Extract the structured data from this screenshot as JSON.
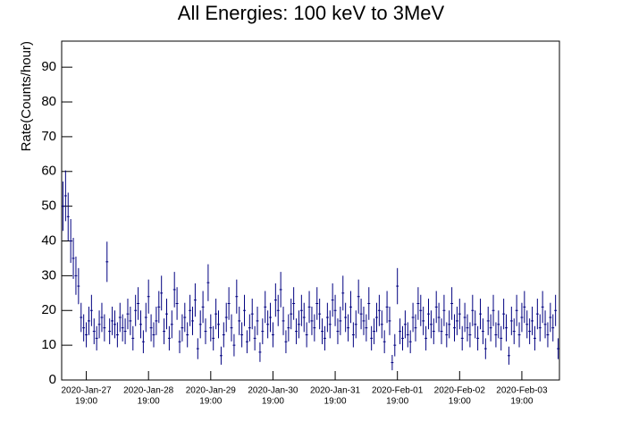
{
  "chart_data": {
    "type": "errorbar",
    "title": "All Energies:  100 keV to 3MeV",
    "y_label": "Rate(Counts/hour)",
    "color": "#000080",
    "ylim": [
      0,
      97.5
    ],
    "yticks": [
      0,
      10,
      20,
      30,
      40,
      50,
      60,
      70,
      80,
      90
    ],
    "xlim": [
      "2020-Jan-27 09:30",
      "2020-Feb-04 09:30"
    ],
    "xticks": [
      {
        "value": "2020-Jan-27 19:00",
        "label": [
          "2020-Jan-27",
          "19:00"
        ]
      },
      {
        "value": "2020-Jan-28 19:00",
        "label": [
          "2020-Jan-28",
          "19:00"
        ]
      },
      {
        "value": "2020-Jan-29 19:00",
        "label": [
          "2020-Jan-29",
          "19:00"
        ]
      },
      {
        "value": "2020-Jan-30 19:00",
        "label": [
          "2020-Jan-30",
          "19:00"
        ]
      },
      {
        "value": "2020-Jan-31 19:00",
        "label": [
          "2020-Jan-31",
          "19:00"
        ]
      },
      {
        "value": "2020-Feb-01 19:00",
        "label": [
          "2020-Feb-01",
          "19:00"
        ]
      },
      {
        "value": "2020-Feb-02 19:00",
        "label": [
          "2020-Feb-02",
          "19:00"
        ]
      },
      {
        "value": "2020-Feb-03 19:00",
        "label": [
          "2020-Feb-03",
          "19:00"
        ]
      }
    ],
    "x": [
      "2020-Jan-27 10:00",
      "2020-Jan-27 11:00",
      "2020-Jan-27 12:00",
      "2020-Jan-27 13:00",
      "2020-Jan-27 14:00",
      "2020-Jan-27 15:00",
      "2020-Jan-27 16:00",
      "2020-Jan-27 17:00",
      "2020-Jan-27 18:00",
      "2020-Jan-27 19:00",
      "2020-Jan-27 20:00",
      "2020-Jan-27 21:00",
      "2020-Jan-27 22:00",
      "2020-Jan-27 23:00",
      "2020-Jan-28 00:00",
      "2020-Jan-28 01:00",
      "2020-Jan-28 02:00",
      "2020-Jan-28 03:00",
      "2020-Jan-28 04:00",
      "2020-Jan-28 05:00",
      "2020-Jan-28 06:00",
      "2020-Jan-28 07:00",
      "2020-Jan-28 08:00",
      "2020-Jan-28 09:00",
      "2020-Jan-28 10:00",
      "2020-Jan-28 11:00",
      "2020-Jan-28 12:00",
      "2020-Jan-28 13:00",
      "2020-Jan-28 14:00",
      "2020-Jan-28 15:00",
      "2020-Jan-28 16:00",
      "2020-Jan-28 17:00",
      "2020-Jan-28 18:00",
      "2020-Jan-28 19:00",
      "2020-Jan-28 20:00",
      "2020-Jan-28 21:00",
      "2020-Jan-28 22:00",
      "2020-Jan-28 23:00",
      "2020-Jan-29 00:00",
      "2020-Jan-29 01:00",
      "2020-Jan-29 02:00",
      "2020-Jan-29 03:00",
      "2020-Jan-29 04:00",
      "2020-Jan-29 05:00",
      "2020-Jan-29 06:00",
      "2020-Jan-29 07:00",
      "2020-Jan-29 08:00",
      "2020-Jan-29 09:00",
      "2020-Jan-29 10:00",
      "2020-Jan-29 11:00",
      "2020-Jan-29 12:00",
      "2020-Jan-29 13:00",
      "2020-Jan-29 14:00",
      "2020-Jan-29 15:00",
      "2020-Jan-29 16:00",
      "2020-Jan-29 17:00",
      "2020-Jan-29 18:00",
      "2020-Jan-29 19:00",
      "2020-Jan-29 20:00",
      "2020-Jan-29 21:00",
      "2020-Jan-29 22:00",
      "2020-Jan-29 23:00",
      "2020-Jan-30 00:00",
      "2020-Jan-30 01:00",
      "2020-Jan-30 02:00",
      "2020-Jan-30 03:00",
      "2020-Jan-30 04:00",
      "2020-Jan-30 05:00",
      "2020-Jan-30 06:00",
      "2020-Jan-30 07:00",
      "2020-Jan-30 08:00",
      "2020-Jan-30 09:00",
      "2020-Jan-30 10:00",
      "2020-Jan-30 11:00",
      "2020-Jan-30 12:00",
      "2020-Jan-30 13:00",
      "2020-Jan-30 14:00",
      "2020-Jan-30 15:00",
      "2020-Jan-30 16:00",
      "2020-Jan-30 17:00",
      "2020-Jan-30 18:00",
      "2020-Jan-30 19:00",
      "2020-Jan-30 20:00",
      "2020-Jan-30 21:00",
      "2020-Jan-30 22:00",
      "2020-Jan-30 23:00",
      "2020-Jan-31 00:00",
      "2020-Jan-31 01:00",
      "2020-Jan-31 02:00",
      "2020-Jan-31 03:00",
      "2020-Jan-31 04:00",
      "2020-Jan-31 05:00",
      "2020-Jan-31 06:00",
      "2020-Jan-31 07:00",
      "2020-Jan-31 08:00",
      "2020-Jan-31 09:00",
      "2020-Jan-31 10:00",
      "2020-Jan-31 11:00",
      "2020-Jan-31 12:00",
      "2020-Jan-31 13:00",
      "2020-Jan-31 14:00",
      "2020-Jan-31 15:00",
      "2020-Jan-31 16:00",
      "2020-Jan-31 17:00",
      "2020-Jan-31 18:00",
      "2020-Jan-31 19:00",
      "2020-Jan-31 20:00",
      "2020-Jan-31 21:00",
      "2020-Jan-31 22:00",
      "2020-Jan-31 23:00",
      "2020-Feb-01 00:00",
      "2020-Feb-01 01:00",
      "2020-Feb-01 02:00",
      "2020-Feb-01 03:00",
      "2020-Feb-01 04:00",
      "2020-Feb-01 05:00",
      "2020-Feb-01 06:00",
      "2020-Feb-01 07:00",
      "2020-Feb-01 08:00",
      "2020-Feb-01 09:00",
      "2020-Feb-01 10:00",
      "2020-Feb-01 11:00",
      "2020-Feb-01 12:00",
      "2020-Feb-01 13:00",
      "2020-Feb-01 14:00",
      "2020-Feb-01 15:00",
      "2020-Feb-01 16:00",
      "2020-Feb-01 17:00",
      "2020-Feb-01 18:00",
      "2020-Feb-01 19:00",
      "2020-Feb-01 20:00",
      "2020-Feb-01 21:00",
      "2020-Feb-01 22:00",
      "2020-Feb-01 23:00",
      "2020-Feb-02 00:00",
      "2020-Feb-02 01:00",
      "2020-Feb-02 02:00",
      "2020-Feb-02 03:00",
      "2020-Feb-02 04:00",
      "2020-Feb-02 05:00",
      "2020-Feb-02 06:00",
      "2020-Feb-02 07:00",
      "2020-Feb-02 08:00",
      "2020-Feb-02 09:00",
      "2020-Feb-02 10:00",
      "2020-Feb-02 11:00",
      "2020-Feb-02 12:00",
      "2020-Feb-02 13:00",
      "2020-Feb-02 14:00",
      "2020-Feb-02 15:00",
      "2020-Feb-02 16:00",
      "2020-Feb-02 17:00",
      "2020-Feb-02 18:00",
      "2020-Feb-02 19:00",
      "2020-Feb-02 20:00",
      "2020-Feb-02 21:00",
      "2020-Feb-02 22:00",
      "2020-Feb-02 23:00",
      "2020-Feb-03 00:00",
      "2020-Feb-03 01:00",
      "2020-Feb-03 02:00",
      "2020-Feb-03 03:00",
      "2020-Feb-03 04:00",
      "2020-Feb-03 05:00",
      "2020-Feb-03 06:00",
      "2020-Feb-03 07:00",
      "2020-Feb-03 08:00",
      "2020-Feb-03 09:00",
      "2020-Feb-03 10:00",
      "2020-Feb-03 11:00",
      "2020-Feb-03 12:00",
      "2020-Feb-03 13:00",
      "2020-Feb-03 14:00",
      "2020-Feb-03 15:00",
      "2020-Feb-03 16:00",
      "2020-Feb-03 17:00",
      "2020-Feb-03 18:00",
      "2020-Feb-03 19:00",
      "2020-Feb-03 20:00",
      "2020-Feb-03 21:00",
      "2020-Feb-03 22:00",
      "2020-Feb-03 23:00",
      "2020-Feb-04 00:00",
      "2020-Feb-04 01:00",
      "2020-Feb-04 02:00",
      "2020-Feb-04 03:00",
      "2020-Feb-04 04:00",
      "2020-Feb-04 05:00",
      "2020-Feb-04 06:00",
      "2020-Feb-04 07:00",
      "2020-Feb-04 08:00",
      "2020-Feb-04 09:00"
    ],
    "values": [
      50,
      53,
      47,
      40,
      35,
      30,
      27,
      18,
      15,
      13,
      17,
      20,
      14,
      12,
      16,
      18,
      15,
      34,
      14,
      17,
      16,
      13,
      18,
      15,
      14,
      19,
      17,
      12,
      20,
      22,
      16,
      11,
      18,
      24,
      15,
      13,
      17,
      21,
      25,
      14,
      19,
      12,
      16,
      26,
      22,
      11,
      15,
      18,
      13,
      20,
      17,
      23,
      9,
      16,
      21,
      14,
      28,
      15,
      12,
      19,
      16,
      7,
      13,
      18,
      22,
      15,
      10,
      24,
      17,
      13,
      20,
      11,
      15,
      19,
      12,
      17,
      8,
      14,
      21,
      16,
      18,
      13,
      23,
      20,
      26,
      17,
      11,
      15,
      19,
      22,
      14,
      16,
      20,
      18,
      13,
      21,
      17,
      15,
      22,
      19,
      14,
      12,
      18,
      16,
      23,
      20,
      14,
      17,
      25,
      18,
      15,
      21,
      13,
      16,
      24,
      19,
      17,
      15,
      22,
      12,
      14,
      18,
      20,
      16,
      11,
      21,
      17,
      5,
      10,
      27,
      14,
      12,
      16,
      13,
      11,
      18,
      15,
      22,
      20,
      17,
      12,
      19,
      16,
      14,
      21,
      18,
      14,
      20,
      13,
      16,
      22,
      15,
      17,
      19,
      12,
      18,
      15,
      13,
      20,
      16,
      12,
      19,
      14,
      9,
      17,
      15,
      20,
      13,
      16,
      12,
      19,
      15,
      7,
      17,
      14,
      20,
      13,
      18,
      21,
      16,
      14,
      17,
      12,
      19,
      15,
      21,
      16,
      13,
      18,
      15,
      20,
      9
    ],
    "errors": [
      7.1,
      7.3,
      6.9,
      6.3,
      5.9,
      5.5,
      5.2,
      4.2,
      3.9,
      3.6,
      4.1,
      4.5,
      3.7,
      3.5,
      4,
      4.2,
      3.9,
      5.8,
      3.7,
      4.1,
      4,
      3.6,
      4.2,
      3.9,
      3.7,
      4.4,
      4.1,
      3.5,
      4.5,
      4.7,
      4,
      3.3,
      4.2,
      4.9,
      3.9,
      3.6,
      4.1,
      4.6,
      5,
      3.7,
      4.4,
      3.5,
      4,
      5.1,
      4.7,
      3.3,
      3.9,
      4.2,
      3.6,
      4.5,
      4.1,
      4.8,
      3,
      4,
      4.6,
      3.7,
      5.3,
      3.9,
      3.5,
      4.4,
      4,
      2.6,
      3.6,
      4.2,
      4.7,
      3.9,
      3.2,
      4.9,
      4.1,
      3.6,
      4.5,
      3.3,
      3.9,
      4.4,
      3.5,
      4.1,
      2.8,
      3.7,
      4.6,
      4,
      4.2,
      3.6,
      4.8,
      4.5,
      5.1,
      4.1,
      3.3,
      3.9,
      4.4,
      4.7,
      3.7,
      4,
      4.5,
      4.2,
      3.6,
      4.6,
      4.1,
      3.9,
      4.7,
      4.4,
      3.7,
      3.5,
      4.2,
      4,
      4.8,
      4.5,
      3.7,
      4.1,
      5,
      4.2,
      3.9,
      4.6,
      3.6,
      4,
      4.9,
      4.4,
      4.1,
      3.9,
      4.7,
      3.5,
      3.7,
      4.2,
      4.5,
      4,
      3.3,
      4.6,
      4.1,
      2.2,
      3.2,
      5.2,
      3.7,
      3.5,
      4,
      3.6,
      3.3,
      4.2,
      3.9,
      4.7,
      4.5,
      4.1,
      3.5,
      4.4,
      4,
      3.7,
      4.6,
      4.2,
      3.7,
      4.5,
      3.6,
      4,
      4.7,
      3.9,
      4.1,
      4.4,
      3.5,
      4.2,
      3.9,
      3.6,
      4.5,
      4,
      3.5,
      4.4,
      3.7,
      3,
      4.1,
      3.9,
      4.5,
      3.6,
      4,
      3.5,
      4.4,
      3.9,
      2.6,
      4.1,
      3.7,
      4.5,
      3.6,
      4.2,
      4.6,
      4,
      3.7,
      4.1,
      3.5,
      4.4,
      3.9,
      4.6,
      4,
      3.6,
      4.2,
      3.9,
      4.5,
      3
    ]
  }
}
